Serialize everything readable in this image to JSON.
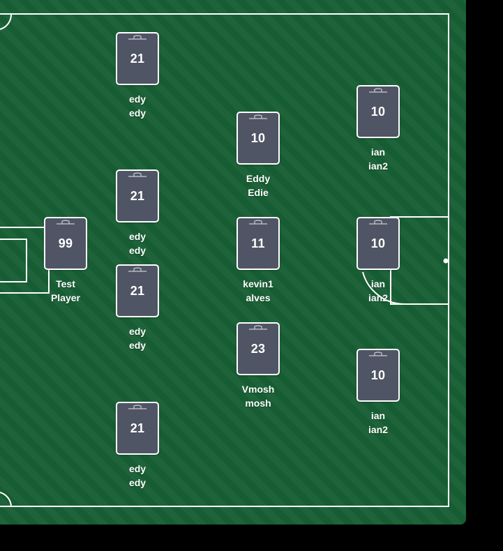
{
  "pitch": {
    "grass_color": "#175d33",
    "line_color": "#ffffff"
  },
  "players": [
    {
      "number": "99",
      "first": "Test",
      "last": "Player"
    },
    {
      "number": "21",
      "first": "edy",
      "last": "edy"
    },
    {
      "number": "21",
      "first": "edy",
      "last": "edy"
    },
    {
      "number": "21",
      "first": "edy",
      "last": "edy"
    },
    {
      "number": "21",
      "first": "edy",
      "last": "edy"
    },
    {
      "number": "10",
      "first": "Eddy",
      "last": "Edie"
    },
    {
      "number": "11",
      "first": "kevin1",
      "last": "alves"
    },
    {
      "number": "23",
      "first": "Vmosh",
      "last": "mosh"
    },
    {
      "number": "10",
      "first": "ian",
      "last": "ian2"
    },
    {
      "number": "10",
      "first": "ian",
      "last": "ian2"
    },
    {
      "number": "10",
      "first": "ian",
      "last": "ian2"
    }
  ]
}
